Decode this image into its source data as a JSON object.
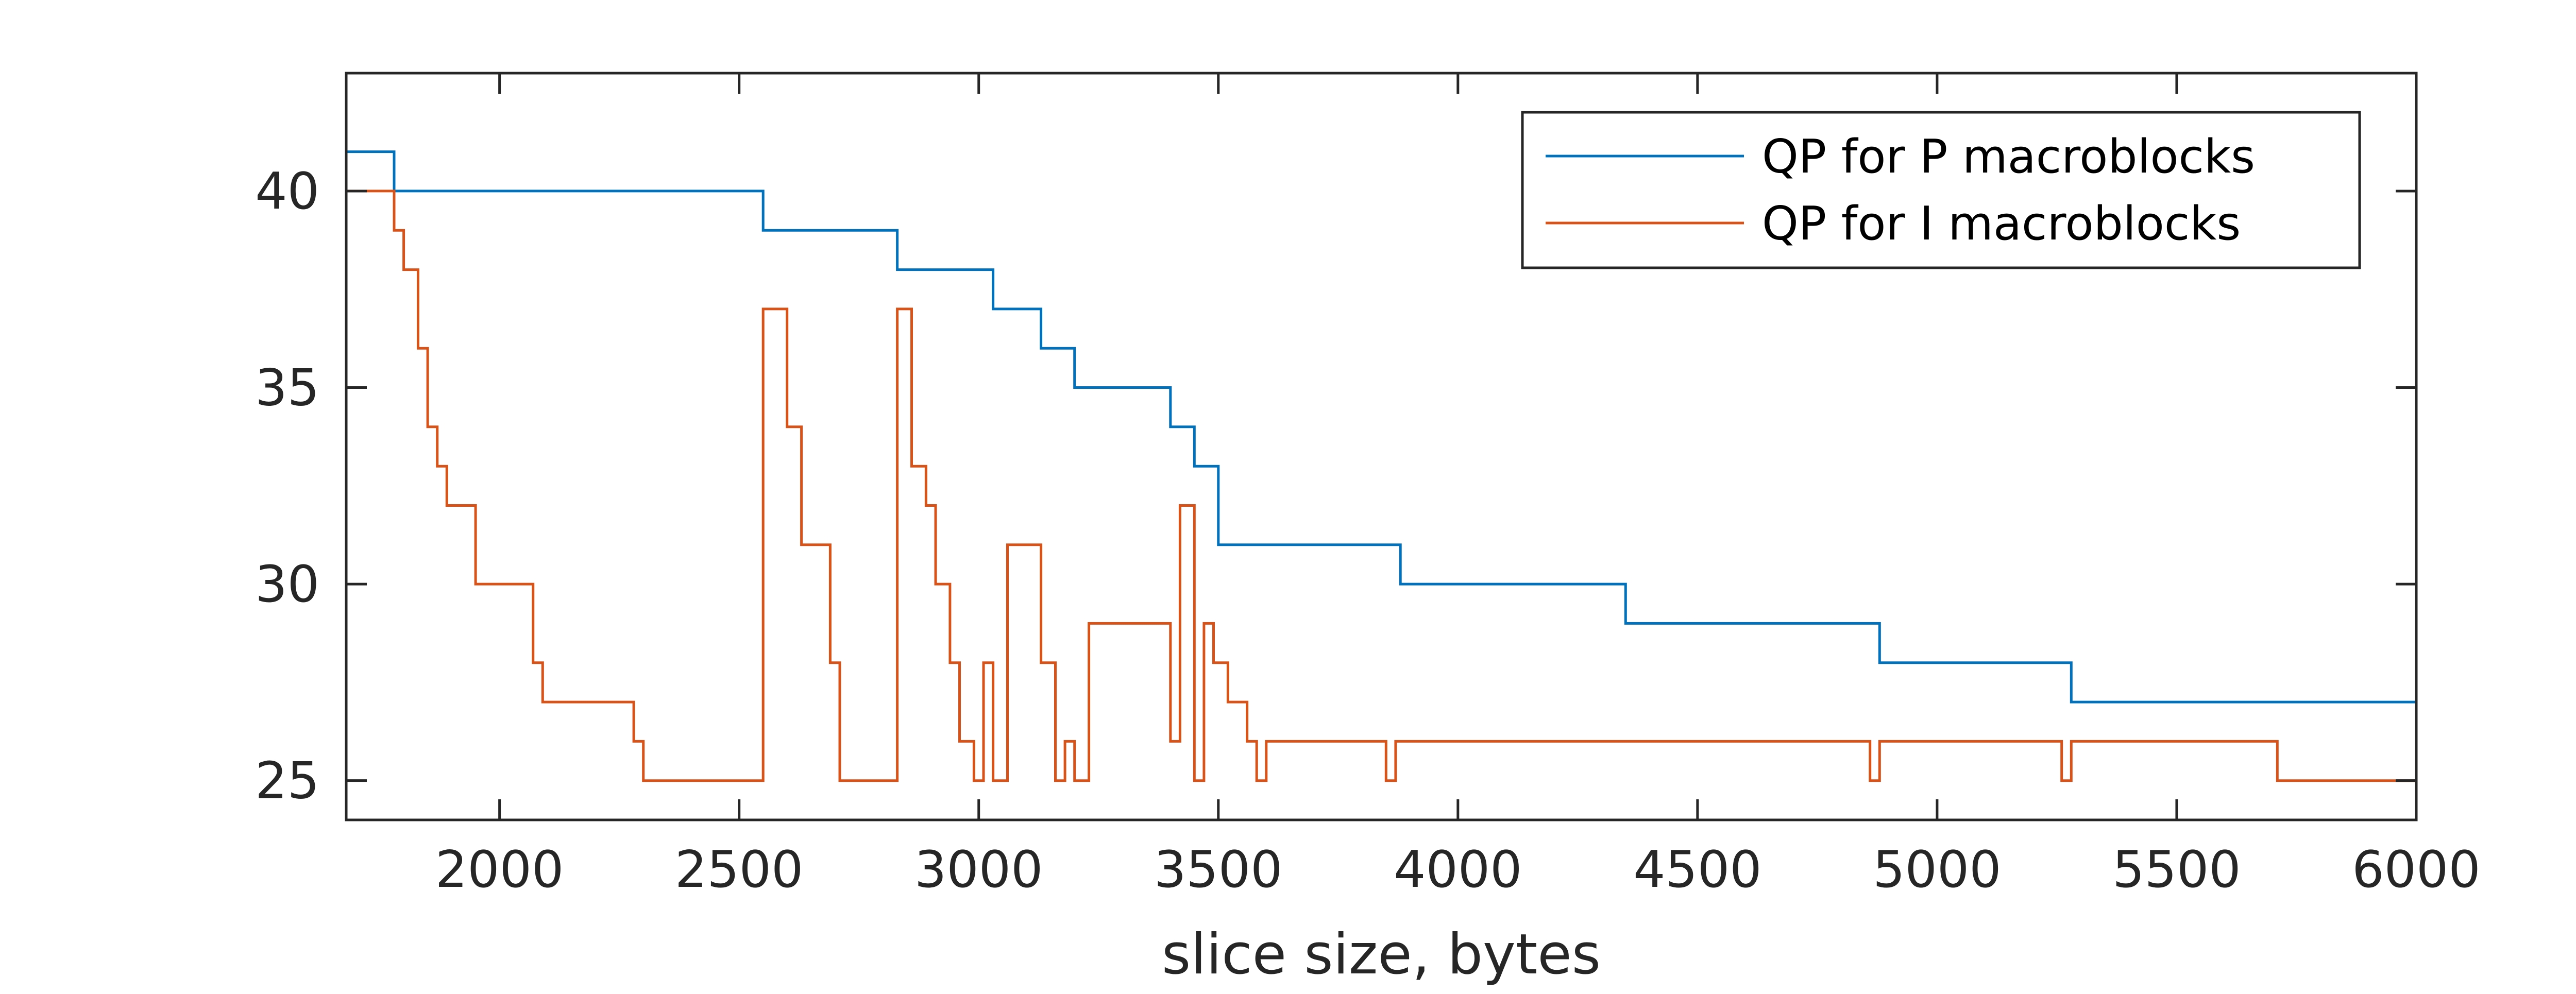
{
  "chart_data": {
    "type": "line",
    "step": true,
    "title": "",
    "xlabel": "slice size, bytes",
    "ylabel": "",
    "xlim": [
      1680,
      6000
    ],
    "ylim": [
      24,
      43
    ],
    "xticks": [
      2000,
      2500,
      3000,
      3500,
      4000,
      4500,
      5000,
      5500,
      6000
    ],
    "xtick_labels": [
      "2000",
      "2500",
      "3000",
      "3500",
      "4000",
      "4500",
      "5000",
      "5500",
      "6000"
    ],
    "yticks": [
      25,
      30,
      35,
      40
    ],
    "ytick_labels": [
      "25",
      "30",
      "35",
      "40"
    ],
    "grid": false,
    "legend_position": "top-right",
    "series": [
      {
        "name": "QP for P macroblocks",
        "color": "#0072bd",
        "x": [
          1680,
          1780,
          2550,
          2830,
          3030,
          3130,
          3200,
          3400,
          3450,
          3500,
          3880,
          4350,
          4880,
          5280,
          6000
        ],
        "y": [
          41,
          40,
          39,
          38,
          37,
          36,
          35,
          34,
          33,
          31,
          30,
          29,
          28,
          27,
          27
        ]
      },
      {
        "name": "QP for I macroblocks",
        "color": "#d95319",
        "x": [
          1680,
          1780,
          1800,
          1830,
          1850,
          1870,
          1890,
          1950,
          2070,
          2090,
          2280,
          2300,
          2550,
          2600,
          2630,
          2690,
          2710,
          2830,
          2860,
          2890,
          2910,
          2940,
          2960,
          2990,
          3010,
          3030,
          3060,
          3130,
          3160,
          3180,
          3200,
          3230,
          3400,
          3420,
          3450,
          3470,
          3490,
          3520,
          3560,
          3580,
          3600,
          3850,
          3870,
          4860,
          4880,
          5260,
          5280,
          5710,
          6000
        ],
        "y": [
          40,
          39,
          38,
          36,
          34,
          33,
          32,
          30,
          28,
          27,
          26,
          25,
          37,
          34,
          31,
          28,
          25,
          37,
          33,
          32,
          30,
          28,
          26,
          25,
          28,
          25,
          31,
          28,
          25,
          26,
          25,
          29,
          26,
          32,
          25,
          29,
          28,
          27,
          26,
          25,
          26,
          25,
          26,
          25,
          26,
          25,
          26,
          25,
          25
        ]
      }
    ]
  }
}
